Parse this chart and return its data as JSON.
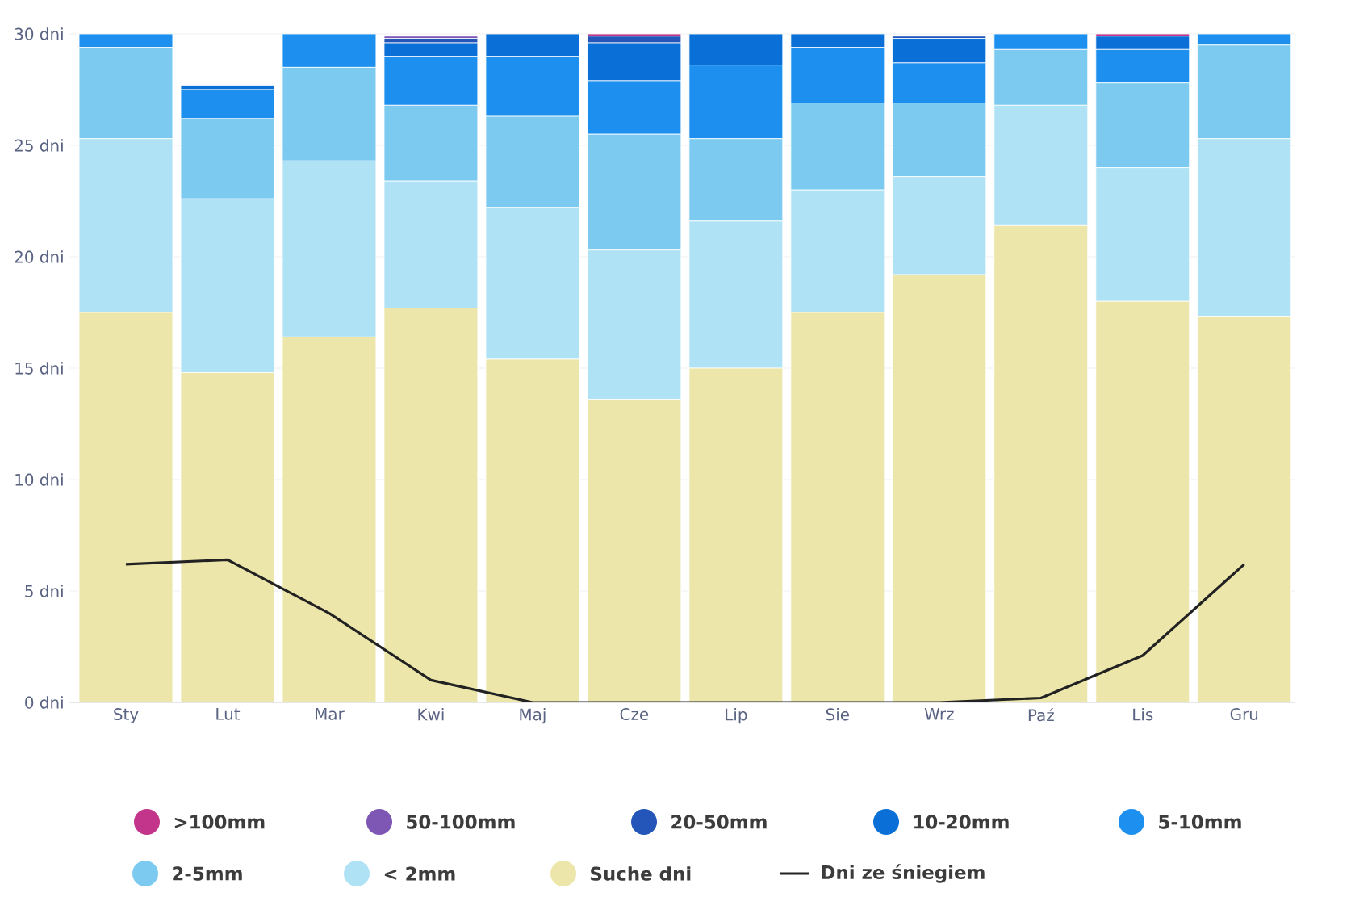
{
  "chart_data": {
    "type": "bar",
    "stacked": true,
    "legend": "bottom",
    "grid": "y",
    "categories": [
      "Sty",
      "Lut",
      "Mar",
      "Kwi",
      "Maj",
      "Cze",
      "Lip",
      "Sie",
      "Wrz",
      "Paź",
      "Lis",
      "Gru"
    ],
    "ylim": [
      0,
      30
    ],
    "yticks": [
      {
        "value": 0,
        "label": "0 dni"
      },
      {
        "value": 5,
        "label": "5 dni"
      },
      {
        "value": 10,
        "label": "10 dni"
      },
      {
        "value": 15,
        "label": "15 dni"
      },
      {
        "value": 20,
        "label": "20 dni"
      },
      {
        "value": 25,
        "label": "25 dni"
      },
      {
        "value": 30,
        "label": "30 dni"
      }
    ],
    "series": [
      {
        "name": "Suche dni",
        "color": "#ece6aa",
        "values": [
          17.5,
          14.8,
          16.4,
          17.7,
          15.4,
          13.6,
          15.0,
          17.5,
          19.2,
          21.4,
          18.0,
          17.3
        ]
      },
      {
        "name": "< 2mm",
        "color": "#b0e2f5",
        "values": [
          7.8,
          7.8,
          7.9,
          5.7,
          6.8,
          6.7,
          6.6,
          5.5,
          4.4,
          5.4,
          6.0,
          8.0
        ]
      },
      {
        "name": "2-5mm",
        "color": "#7ccaf0",
        "values": [
          4.1,
          3.6,
          4.2,
          3.4,
          4.1,
          5.2,
          3.7,
          3.9,
          3.3,
          2.5,
          3.8,
          4.2
        ]
      },
      {
        "name": "5-10mm",
        "color": "#1c8fef",
        "values": [
          0.6,
          1.3,
          1.5,
          2.2,
          2.7,
          2.4,
          3.3,
          2.5,
          1.8,
          0.7,
          1.5,
          0.5
        ]
      },
      {
        "name": "10-20mm",
        "color": "#0a70d8",
        "values": [
          0,
          0.2,
          0,
          0.6,
          1.0,
          1.7,
          1.4,
          0.6,
          1.1,
          0,
          0.6,
          0
        ]
      },
      {
        "name": "20-50mm",
        "color": "#2455b8",
        "values": [
          0,
          0,
          0,
          0.2,
          0,
          0.3,
          0,
          0,
          0.1,
          0,
          0,
          0
        ]
      },
      {
        "name": "50-100mm",
        "color": "#7e57b5",
        "values": [
          0,
          0,
          0,
          0.1,
          0,
          0,
          0,
          0,
          0,
          0,
          0,
          0
        ]
      },
      {
        "name": ">100mm",
        "color": "#c2358a",
        "values": [
          0,
          0,
          0,
          0,
          0,
          0.1,
          0,
          0,
          0,
          0,
          0.1,
          0
        ]
      },
      {
        "name": "Dni ze śniegiem",
        "type": "line",
        "color": "#222222",
        "values": [
          6.2,
          6.4,
          4.0,
          1.0,
          0,
          0,
          0,
          0,
          0,
          0.2,
          2.1,
          6.2
        ]
      }
    ]
  }
}
